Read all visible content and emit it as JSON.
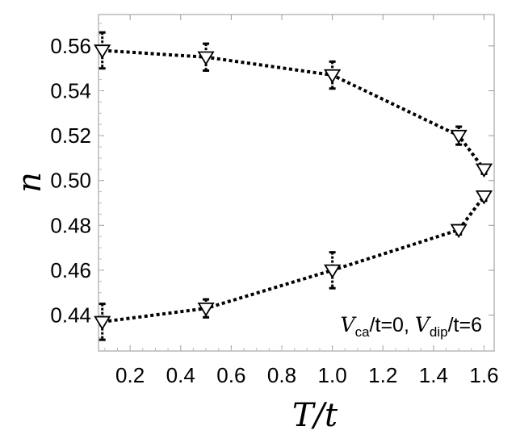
{
  "chart_data": {
    "type": "scatter",
    "title": "",
    "xlabel": "T/t",
    "ylabel": "n",
    "xlim": [
      0.075,
      1.64
    ],
    "ylim": [
      0.424,
      0.574
    ],
    "x_ticks": [
      {
        "value": 0.2,
        "label": "0.2"
      },
      {
        "value": 0.4,
        "label": "0.4"
      },
      {
        "value": 0.6,
        "label": "0.6"
      },
      {
        "value": 0.8,
        "label": "0.8"
      },
      {
        "value": 1.0,
        "label": "1.0"
      },
      {
        "value": 1.2,
        "label": "1.2"
      },
      {
        "value": 1.4,
        "label": "1.4"
      },
      {
        "value": 1.6,
        "label": "1.6"
      }
    ],
    "y_ticks": [
      {
        "value": 0.44,
        "label": "0.44"
      },
      {
        "value": 0.46,
        "label": "0.46"
      },
      {
        "value": 0.48,
        "label": "0.48"
      },
      {
        "value": 0.5,
        "label": "0.50"
      },
      {
        "value": 0.52,
        "label": "0.52"
      },
      {
        "value": 0.54,
        "label": "0.54"
      },
      {
        "value": 0.56,
        "label": "0.56"
      }
    ],
    "grid": false,
    "series": [
      {
        "marker": "triangle-down-open",
        "line_style": "dotted",
        "color": "#000000",
        "points": [
          {
            "x": 0.09,
            "y": 0.558,
            "err": 0.008
          },
          {
            "x": 0.5,
            "y": 0.555,
            "err": 0.006
          },
          {
            "x": 1.0,
            "y": 0.547,
            "err": 0.006
          },
          {
            "x": 1.5,
            "y": 0.52,
            "err": 0.004
          },
          {
            "x": 1.6,
            "y": 0.505,
            "err": 0.002
          }
        ]
      },
      {
        "marker": "triangle-down-open",
        "line_style": "dotted",
        "color": "#000000",
        "points": [
          {
            "x": 0.09,
            "y": 0.437,
            "err": 0.008
          },
          {
            "x": 0.5,
            "y": 0.443,
            "err": 0.004
          },
          {
            "x": 1.0,
            "y": 0.46,
            "err": 0.008
          },
          {
            "x": 1.5,
            "y": 0.478,
            "err": 0.002
          },
          {
            "x": 1.6,
            "y": 0.493,
            "err": 0.002
          }
        ]
      }
    ],
    "annotation": {
      "var1": "V",
      "sub1": "ca",
      "rest1": "/t=0, ",
      "var2": "V",
      "sub2": "dip",
      "rest2": "/t=6",
      "placement": "bottom-right"
    }
  }
}
